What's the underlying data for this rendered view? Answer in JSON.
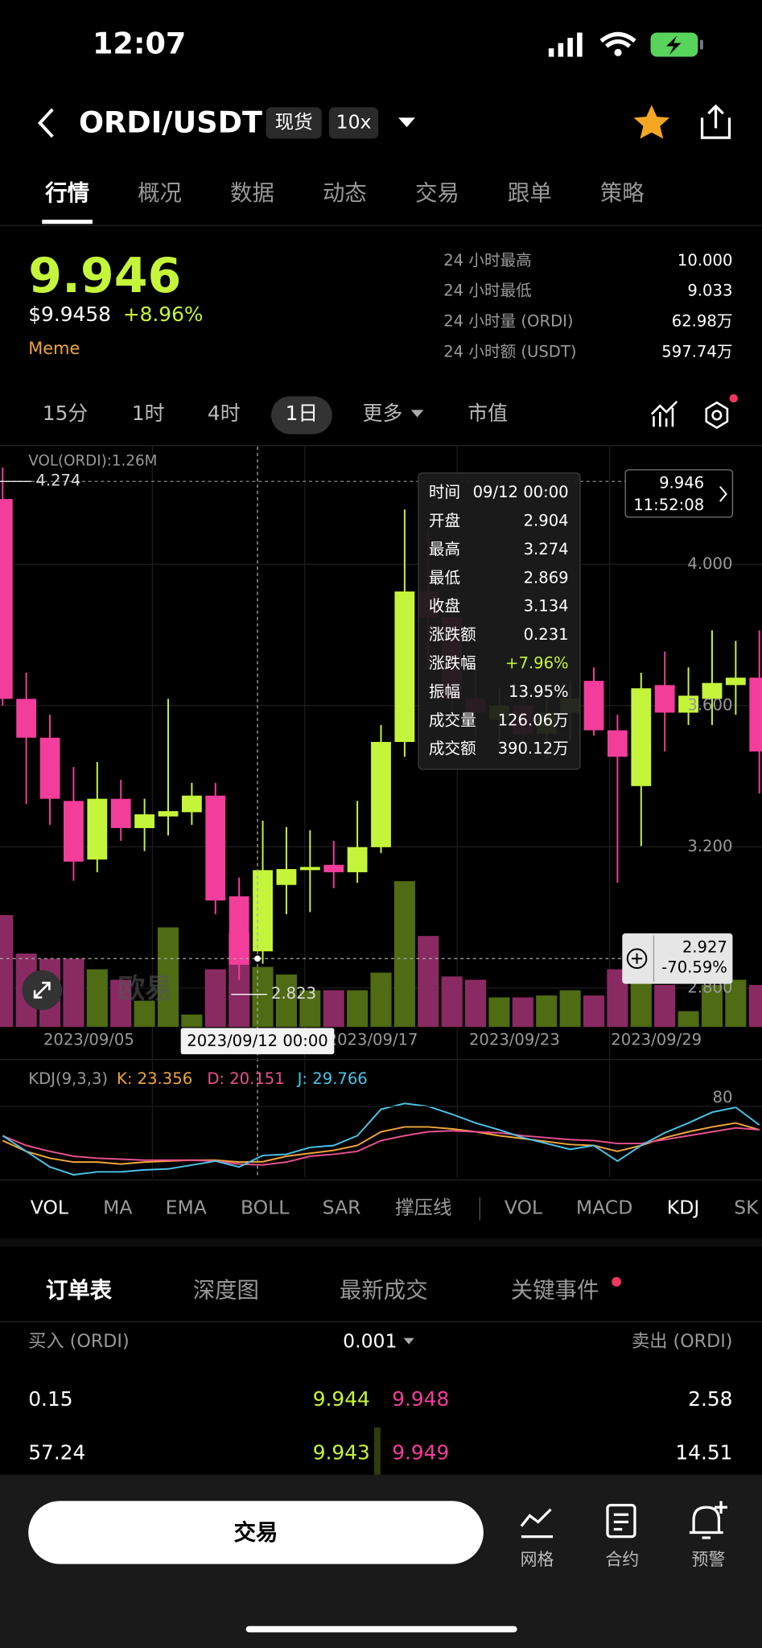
{
  "status": {
    "time": "12:07"
  },
  "header": {
    "pair": "ORDI/USDT",
    "badges": [
      "现货",
      "10x"
    ]
  },
  "tabs": [
    "行情",
    "概况",
    "数据",
    "动态",
    "交易",
    "跟单",
    "策略"
  ],
  "price": {
    "last": "9.946",
    "usd": "$9.9458",
    "change": "+8.96%",
    "tag": "Meme"
  },
  "stats": [
    {
      "label": "24 小时最高",
      "value": "10.000"
    },
    {
      "label": "24 小时最低",
      "value": "9.033"
    },
    {
      "label": "24 小时量 (ORDI)",
      "value": "62.98万"
    },
    {
      "label": "24 小时额 (USDT)",
      "value": "597.74万"
    }
  ],
  "intervals": [
    "15分",
    "1时",
    "4时",
    "1日",
    "更多",
    "市值"
  ],
  "chart_data": [
    {
      "type": "candlestick",
      "categories": [
        null,
        null,
        null,
        null,
        "2023/09/05",
        null,
        null,
        null,
        null,
        null,
        null,
        null,
        null,
        null,
        null,
        null,
        "2023/09/17",
        null,
        null,
        null,
        null,
        null,
        "2023/09/23",
        null,
        null,
        null,
        null,
        null,
        "2023/09/29",
        null,
        null,
        null,
        null
      ],
      "open": [
        4.185,
        3.619,
        3.509,
        3.33,
        3.164,
        3.336,
        3.253,
        3.286,
        3.298,
        3.345,
        3.06,
        2.904,
        3.092,
        3.134,
        3.149,
        3.128,
        3.199,
        3.497,
        3.923,
        3.85,
        3.62,
        3.56,
        3.6,
        3.52,
        3.58,
        3.67,
        3.53,
        3.372,
        3.658,
        3.58,
        3.619,
        3.658,
        3.679
      ],
      "high": [
        4.274,
        3.693,
        3.574,
        3.426,
        3.44,
        3.39,
        3.336,
        3.619,
        3.381,
        3.381,
        3.113,
        3.274,
        3.256,
        3.247,
        3.217,
        3.33,
        3.545,
        4.155,
        4.1,
        3.9,
        3.7,
        3.65,
        3.65,
        3.62,
        3.67,
        3.708,
        3.574,
        3.693,
        3.753,
        3.708,
        3.813,
        3.783,
        3.813
      ],
      "low": [
        3.6,
        3.321,
        3.262,
        3.104,
        3.128,
        3.217,
        3.188,
        3.232,
        3.262,
        3.009,
        2.823,
        2.869,
        3.009,
        3.015,
        3.083,
        3.098,
        3.182,
        3.455,
        3.7,
        3.55,
        3.5,
        3.5,
        3.48,
        3.45,
        3.5,
        3.515,
        3.098,
        3.202,
        3.47,
        3.545,
        3.545,
        3.574,
        3.351
      ],
      "close": [
        3.619,
        3.509,
        3.336,
        3.158,
        3.336,
        3.253,
        3.292,
        3.301,
        3.345,
        3.048,
        2.866,
        3.134,
        3.137,
        3.143,
        3.128,
        3.199,
        3.497,
        3.923,
        3.85,
        3.62,
        3.58,
        3.6,
        3.52,
        3.58,
        3.62,
        3.53,
        3.455,
        3.649,
        3.58,
        3.628,
        3.664,
        3.679,
        3.47
      ],
      "volume": [
        235,
        154,
        143,
        143,
        121,
        99,
        55,
        209,
        26,
        121,
        198,
        126,
        110,
        77,
        77,
        77,
        114,
        306,
        191,
        106,
        99,
        62,
        62,
        66,
        77,
        66,
        121,
        99,
        88,
        33,
        88,
        99,
        88
      ],
      "volume_ylim": [
        0,
        320
      ],
      "ylim": [
        2.69,
        4.333
      ],
      "yticks": [
        {
          "value": 4,
          "label": "4.000"
        },
        {
          "value": 3.6,
          "label": "3.600"
        },
        {
          "value": 3.2,
          "label": "3.200"
        },
        {
          "value": 2.8,
          "label": "2.800"
        }
      ],
      "up_color": "#c5f53a",
      "down_color": "#f23d9b",
      "volume_up_color": "#4f6b13",
      "volume_down_color": "#8a2a62",
      "grid": true
    },
    {
      "type": "line",
      "title": "KDJ(9,3,3)",
      "ylim": [
        0,
        100
      ],
      "yticks": [
        80
      ],
      "series": [
        {
          "name": "K: 23.356",
          "color": "#f0a63a",
          "values": [
            45,
            34,
            27,
            23,
            23,
            21,
            23,
            24,
            25,
            25,
            23,
            23.356,
            29,
            32,
            35,
            40,
            54,
            59,
            59,
            57,
            54,
            50,
            47,
            44,
            41,
            40,
            34,
            40,
            48,
            54,
            59,
            63,
            56
          ]
        },
        {
          "name": "D: 20.151",
          "color": "#e8508f",
          "values": [
            50,
            40,
            34,
            29,
            27,
            26,
            25,
            25,
            25,
            24,
            21,
            20.151,
            23,
            29,
            31,
            34,
            45,
            50,
            54,
            55,
            54,
            53,
            50,
            48,
            46,
            45,
            42,
            42,
            46,
            50,
            54,
            58,
            56
          ]
        },
        {
          "name": "J: 29.766",
          "color": "#4cc3e8",
          "values": [
            50,
            34,
            18,
            10,
            13,
            13,
            15,
            16,
            20,
            24,
            18,
            29.766,
            31,
            38,
            40,
            50,
            77,
            83,
            80,
            72,
            63,
            56,
            48,
            42,
            36,
            40,
            24,
            40,
            53,
            63,
            74,
            79,
            61
          ]
        }
      ]
    }
  ],
  "overlay": {
    "volume_label": "VOL(ORDI):1.26M",
    "high_marker": "4.274",
    "low_marker": "2.823",
    "last_price": "9.946",
    "countdown": "11:52:08",
    "crosshair_price": "2.927",
    "crosshair_change": "-70.59%",
    "crosshair_date": "2023/09/12 00:00",
    "watermark": "欧易",
    "tooltip": [
      [
        "时间",
        "09/12 00:00"
      ],
      [
        "开盘",
        "2.904"
      ],
      [
        "最高",
        "3.274"
      ],
      [
        "最低",
        "2.869"
      ],
      [
        "收盘",
        "3.134"
      ],
      [
        "涨跌额",
        "0.231"
      ],
      [
        "涨跌幅",
        "+7.96%"
      ],
      [
        "振幅",
        "13.95%"
      ],
      [
        "成交量",
        "126.06万"
      ],
      [
        "成交额",
        "390.12万"
      ]
    ]
  },
  "indicators": [
    "VOL",
    "MA",
    "EMA",
    "BOLL",
    "SAR",
    "撑压线",
    "VOL",
    "MACD",
    "KDJ",
    "SK"
  ],
  "orderbook": {
    "tabs": [
      "订单表",
      "深度图",
      "最新成交",
      "关键事件"
    ],
    "header": {
      "buy": "买入 (ORDI)",
      "step": "0.001",
      "sell": "卖出 (ORDI)"
    },
    "rows": [
      [
        "0.15",
        "9.944",
        "9.948",
        "2.58"
      ],
      [
        "57.24",
        "9.943",
        "9.949",
        "14.51"
      ]
    ]
  },
  "bottom": {
    "trade": "交易",
    "actions": [
      "网格",
      "合约",
      "预警"
    ]
  }
}
